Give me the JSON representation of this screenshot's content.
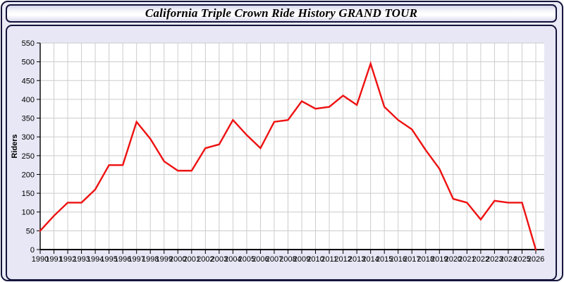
{
  "window": {
    "title": "California Triple Crown Ride History GRAND TOUR"
  },
  "chart_data": {
    "type": "line",
    "title": "California Triple Crown Ride History GRAND TOUR",
    "xlabel": "",
    "ylabel": "Riders",
    "x": [
      1990,
      1991,
      1992,
      1993,
      1994,
      1995,
      1996,
      1997,
      1998,
      1999,
      2000,
      2001,
      2002,
      2003,
      2004,
      2005,
      2006,
      2007,
      2008,
      2009,
      2010,
      2011,
      2012,
      2013,
      2014,
      2015,
      2016,
      2017,
      2018,
      2019,
      2020,
      2021,
      2022,
      2023,
      2024,
      2025,
      2026
    ],
    "series": [
      {
        "name": "Riders",
        "color": "#ee1111",
        "values": [
          50,
          90,
          125,
          125,
          160,
          225,
          225,
          340,
          295,
          235,
          210,
          210,
          270,
          280,
          345,
          305,
          270,
          340,
          345,
          395,
          375,
          380,
          410,
          385,
          495,
          380,
          345,
          320,
          265,
          215,
          135,
          125,
          80,
          130,
          125,
          125,
          0
        ]
      }
    ],
    "ylim": [
      0,
      550
    ],
    "ytick_step": 50,
    "grid": true,
    "legend": false,
    "grid_color": "#cccccc",
    "plot_bg": "#ffffff",
    "axis_color": "#000000",
    "tick_label_color": "#000000",
    "tick_font_size": 11
  },
  "colors": {
    "window_border": "#14143c",
    "panel_bg": "#e7e7f5",
    "window_bg": "#ebebf7",
    "line_red": "#ee1111"
  }
}
